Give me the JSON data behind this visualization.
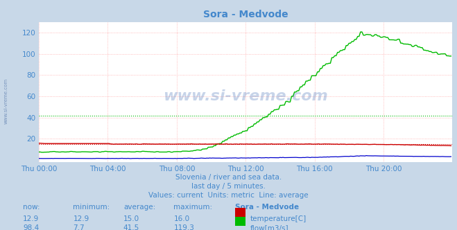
{
  "title": "Sora - Medvode",
  "bg_color": "#c8d8e8",
  "plot_bg_color": "#ffffff",
  "text_color": "#4488cc",
  "subtitle_lines": [
    "Slovenia / river and sea data.",
    "last day / 5 minutes.",
    "Values: current  Units: metric  Line: average"
  ],
  "xlabel_ticks": [
    "Thu 00:00",
    "Thu 04:00",
    "Thu 08:00",
    "Thu 12:00",
    "Thu 16:00",
    "Thu 20:00"
  ],
  "x_tick_pos": [
    0,
    48,
    96,
    144,
    192,
    240
  ],
  "ylabel_ticks": [
    20,
    40,
    60,
    80,
    100,
    120
  ],
  "ylim": [
    -2,
    130
  ],
  "xlim": [
    0,
    288
  ],
  "temp_avg": 15.0,
  "flow_avg": 41.5,
  "temp_color": "#cc0000",
  "flow_color": "#00bb00",
  "height_color": "#0000cc",
  "watermark_text": "www.si-vreme.com",
  "table_headers": [
    "now:",
    "minimum:",
    "average:",
    "maximum:",
    "Sora - Medvode"
  ],
  "table_row1": [
    "12.9",
    "12.9",
    "15.0",
    "16.0"
  ],
  "table_row2": [
    "98.4",
    "7.7",
    "41.5",
    "119.3"
  ],
  "table_label1": "temperature[C]",
  "table_label2": "flow[m3/s]"
}
